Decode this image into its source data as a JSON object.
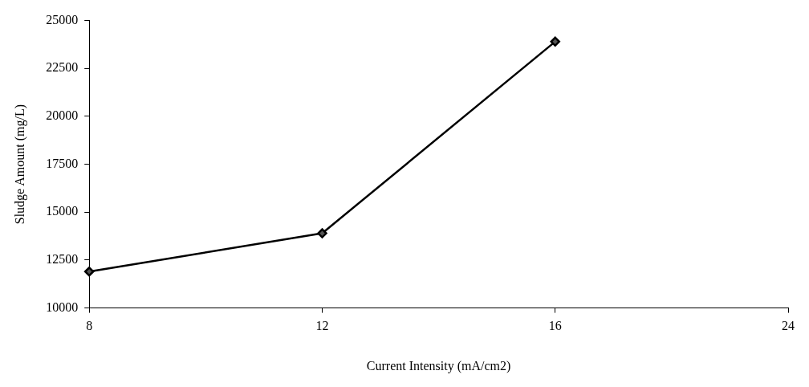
{
  "chart_data": {
    "type": "line",
    "xlabel": "Current Intensity (mA/cm2)",
    "ylabel": "Sludge Amount (mg/L)",
    "categories": [
      "8",
      "12",
      "16",
      "24"
    ],
    "series": [
      {
        "color": "#000000",
        "values": [
          11900,
          13900,
          23900,
          null
        ]
      }
    ],
    "ylim": [
      10000,
      25000
    ],
    "yticks": [
      10000,
      12500,
      15000,
      17500,
      20000,
      22500,
      25000
    ],
    "marker": "diamond",
    "line_style": "solid",
    "legend": false
  }
}
